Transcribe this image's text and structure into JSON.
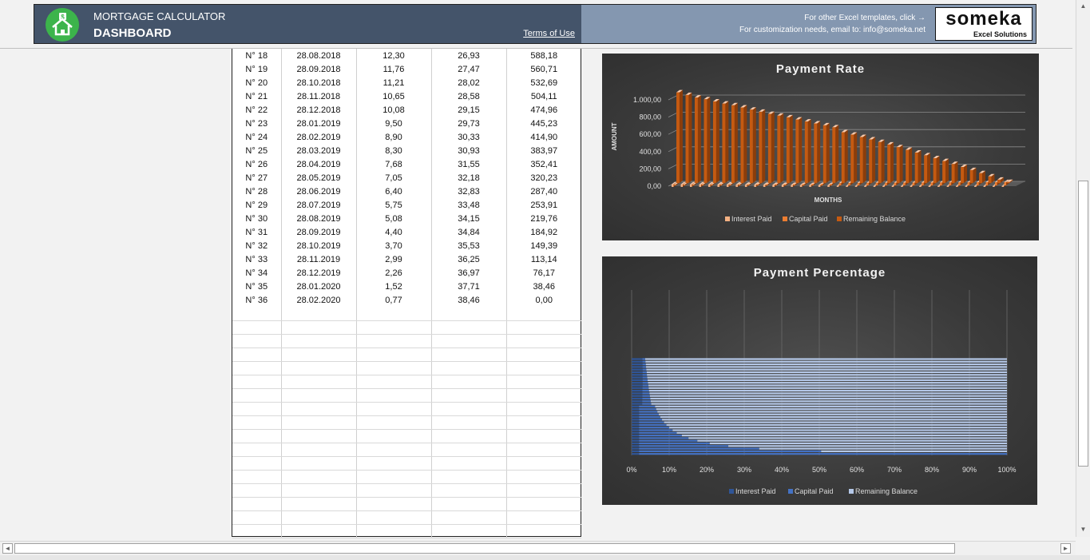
{
  "header": {
    "app_title": "MORTGAGE CALCULATOR",
    "page_title": "DASHBOARD",
    "terms_link": "Terms of Use",
    "templates_text": "For other Excel templates, click →",
    "customization_text": "For customization needs, email to: info@someka.net",
    "brand_name": "someka",
    "brand_sub": "Excel Solutions",
    "logo_icon": "house-dollar-icon",
    "colors": {
      "header_dark": "#44546a",
      "header_light": "#8497b0",
      "logo_green": "#3cb44b"
    }
  },
  "table": {
    "rows": [
      [
        "N° 18",
        "28.08.2018",
        "12,30",
        "26,93",
        "588,18"
      ],
      [
        "N° 19",
        "28.09.2018",
        "11,76",
        "27,47",
        "560,71"
      ],
      [
        "N° 20",
        "28.10.2018",
        "11,21",
        "28,02",
        "532,69"
      ],
      [
        "N° 21",
        "28.11.2018",
        "10,65",
        "28,58",
        "504,11"
      ],
      [
        "N° 22",
        "28.12.2018",
        "10,08",
        "29,15",
        "474,96"
      ],
      [
        "N° 23",
        "28.01.2019",
        "9,50",
        "29,73",
        "445,23"
      ],
      [
        "N° 24",
        "28.02.2019",
        "8,90",
        "30,33",
        "414,90"
      ],
      [
        "N° 25",
        "28.03.2019",
        "8,30",
        "30,93",
        "383,97"
      ],
      [
        "N° 26",
        "28.04.2019",
        "7,68",
        "31,55",
        "352,41"
      ],
      [
        "N° 27",
        "28.05.2019",
        "7,05",
        "32,18",
        "320,23"
      ],
      [
        "N° 28",
        "28.06.2019",
        "6,40",
        "32,83",
        "287,40"
      ],
      [
        "N° 29",
        "28.07.2019",
        "5,75",
        "33,48",
        "253,91"
      ],
      [
        "N° 30",
        "28.08.2019",
        "5,08",
        "34,15",
        "219,76"
      ],
      [
        "N° 31",
        "28.09.2019",
        "4,40",
        "34,84",
        "184,92"
      ],
      [
        "N° 32",
        "28.10.2019",
        "3,70",
        "35,53",
        "149,39"
      ],
      [
        "N° 33",
        "28.11.2019",
        "2,99",
        "36,25",
        "113,14"
      ],
      [
        "N° 34",
        "28.12.2019",
        "2,26",
        "36,97",
        "76,17"
      ],
      [
        "N° 35",
        "28.01.2020",
        "1,52",
        "37,71",
        "38,46"
      ],
      [
        "N° 36",
        "28.02.2020",
        "0,77",
        "38,46",
        "0,00"
      ]
    ]
  },
  "chart_data": [
    {
      "type": "bar",
      "title": "Payment Rate",
      "xlabel": "MONTHS",
      "ylabel": "AMOUNT",
      "ylim": [
        0,
        1000
      ],
      "y_ticks": [
        "0,00",
        "200,00",
        "400,00",
        "600,00",
        "800,00",
        "1.000,00"
      ],
      "legend_position": "bottom",
      "series": [
        {
          "name": "Interest Paid",
          "color": "#f4b183",
          "values": [
            31.3,
            30.6,
            29.9,
            29.2,
            28.6,
            27.9,
            27.2,
            26.5,
            25.8,
            25.1,
            24.4,
            23.6,
            22.9,
            22.2,
            21.4,
            20.6,
            19.8,
            19.1,
            12.3,
            11.76,
            11.21,
            10.65,
            10.08,
            9.5,
            8.9,
            8.3,
            7.68,
            7.05,
            6.4,
            5.75,
            5.08,
            4.4,
            3.7,
            2.99,
            2.26,
            1.52,
            0.77
          ]
        },
        {
          "name": "Capital Paid",
          "color": "#ed7d31",
          "values": [
            8.0,
            8.5,
            9.0,
            9.5,
            10.0,
            10.5,
            11.0,
            11.5,
            12.0,
            12.5,
            13.0,
            13.5,
            14.0,
            14.5,
            15.0,
            15.5,
            16.0,
            16.5,
            26.93,
            27.47,
            28.02,
            28.58,
            29.15,
            29.73,
            30.33,
            30.93,
            31.55,
            32.18,
            32.83,
            33.48,
            34.15,
            34.84,
            35.53,
            36.25,
            36.97,
            37.71,
            38.46
          ]
        },
        {
          "name": "Remaining Balance",
          "color": "#c55a11",
          "values": [
            1050,
            1020,
            990,
            970,
            945,
            920,
            900,
            875,
            850,
            825,
            800,
            780,
            760,
            735,
            712,
            690,
            668,
            645,
            588.18,
            560.71,
            532.69,
            504.11,
            474.96,
            445.23,
            414.9,
            383.97,
            352.41,
            320.23,
            287.4,
            253.91,
            219.76,
            184.92,
            149.39,
            113.14,
            76.17,
            38.46,
            0
          ]
        }
      ]
    },
    {
      "type": "bar",
      "title": "Payment Percentage",
      "orientation": "horizontal",
      "stacked": "percent",
      "x_ticks": [
        "0%",
        "10%",
        "20%",
        "30%",
        "40%",
        "50%",
        "60%",
        "70%",
        "80%",
        "90%",
        "100%"
      ],
      "legend_position": "bottom",
      "series": [
        {
          "name": "Interest Paid",
          "color": "#2f5597"
        },
        {
          "name": "Capital Paid",
          "color": "#4472c4"
        },
        {
          "name": "Remaining Balance",
          "color": "#b4c7e7"
        }
      ]
    }
  ],
  "scrollbars": {
    "up_arrow": "▲",
    "down_arrow": "▼",
    "left_arrow": "◄",
    "right_arrow": "►"
  }
}
